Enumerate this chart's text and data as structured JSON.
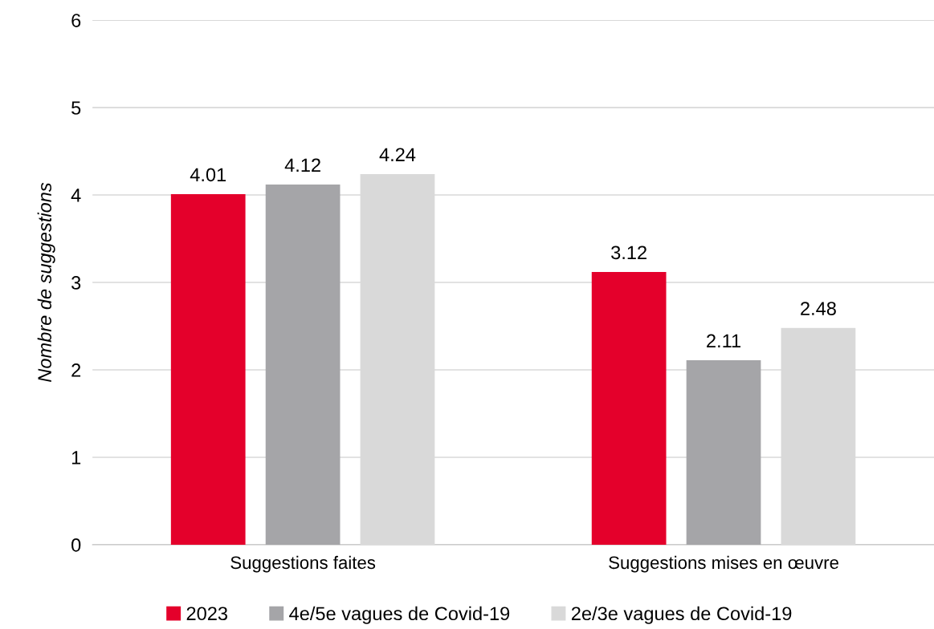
{
  "chart_data": {
    "type": "bar",
    "ylabel": "Nombre de suggestions",
    "categories": [
      "Suggestions faites",
      "Suggestions mises en œuvre"
    ],
    "series": [
      {
        "name": "2023",
        "color": "#e4002b",
        "values": [
          4.01,
          3.12
        ]
      },
      {
        "name": "4e/5e vagues de Covid-19",
        "color": "#a5a5a8",
        "values": [
          4.12,
          2.11
        ]
      },
      {
        "name": "2e/3e vagues de Covid-19",
        "color": "#d9d9d9",
        "values": [
          4.24,
          2.48
        ]
      }
    ],
    "ylim": [
      0,
      6
    ],
    "yticks": [
      0,
      1,
      2,
      3,
      4,
      5,
      6
    ],
    "grid": "y",
    "legend": "bottom",
    "data_labels": true
  }
}
